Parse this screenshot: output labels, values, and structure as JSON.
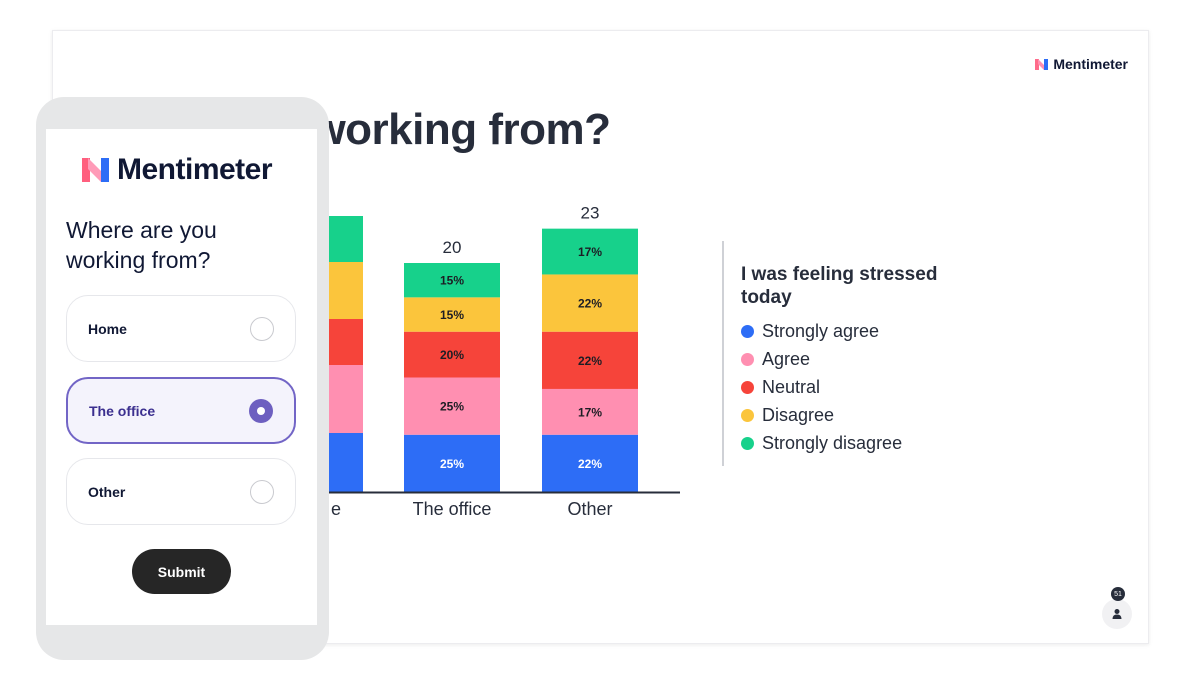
{
  "slide": {
    "brand": "Mentimeter",
    "title": "you working from?",
    "participants_count": "51"
  },
  "colors": {
    "strongly_agree": "#2d6df6",
    "agree": "#ff8fb1",
    "neutral": "#f6443a",
    "disagree": "#fbc53c",
    "strongly_disagree": "#17d18b",
    "accent": "#6d5fc0"
  },
  "chart_data": {
    "type": "bar",
    "stacked": true,
    "categories": [
      "e",
      "The office",
      "Other"
    ],
    "totals": [
      null,
      20,
      23
    ],
    "legend_title": "I was feeling stressed today",
    "legend_position": "right",
    "series": [
      {
        "name": "Strongly agree",
        "color": "#2d6df6",
        "labels": [
          "",
          "25%",
          "22%"
        ]
      },
      {
        "name": "Agree",
        "color": "#ff8fb1",
        "labels": [
          "",
          "25%",
          "17%"
        ]
      },
      {
        "name": "Neutral",
        "color": "#f6443a",
        "labels": [
          "",
          "20%",
          "22%"
        ]
      },
      {
        "name": "Disagree",
        "color": "#fbc53c",
        "labels": [
          "",
          "15%",
          "22%"
        ]
      },
      {
        "name": "Strongly disagree",
        "color": "#17d18b",
        "labels": [
          "",
          "15%",
          "17%"
        ]
      }
    ],
    "values": {
      "The office": [
        5,
        5,
        4,
        3,
        3
      ],
      "Other": [
        5,
        4,
        5,
        5,
        4
      ]
    }
  },
  "phone": {
    "brand": "Mentimeter",
    "question": "Where are you working from?",
    "options": [
      {
        "label": "Home",
        "selected": false
      },
      {
        "label": "The office",
        "selected": true
      },
      {
        "label": "Other",
        "selected": false
      }
    ],
    "submit_label": "Submit"
  }
}
